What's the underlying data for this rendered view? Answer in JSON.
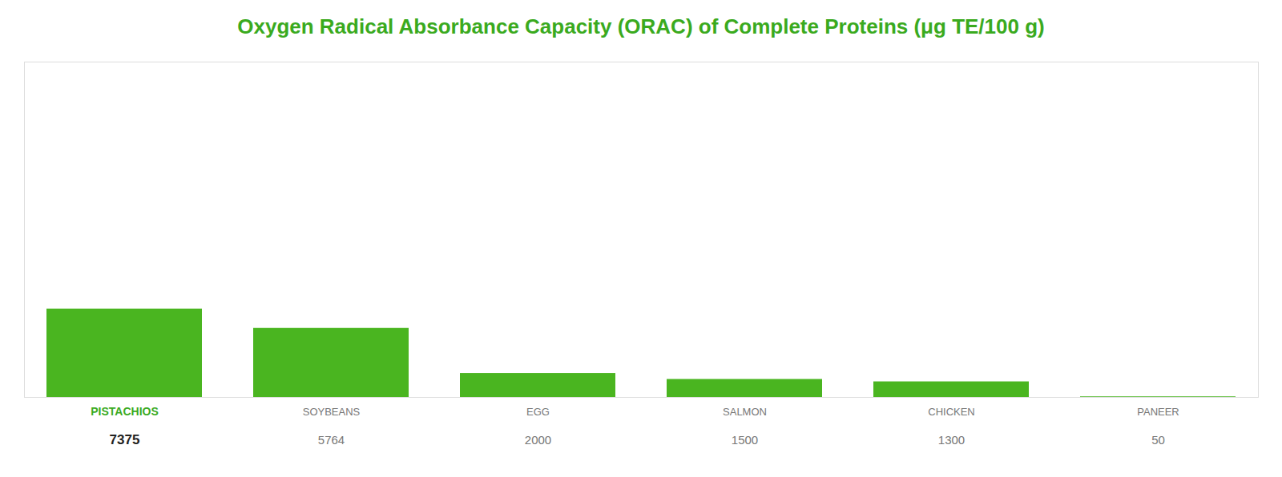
{
  "chart_data": {
    "type": "bar",
    "title": "Oxygen Radical Absorbance Capacity (ORAC) of Complete Proteins (μg TE/100 g)",
    "categories": [
      "PISTACHIOS",
      "SOYBEANS",
      "EGG",
      "SALMON",
      "CHICKEN",
      "PANEER"
    ],
    "values": [
      7375,
      5764,
      2000,
      1500,
      1300,
      50
    ],
    "color": "#4ab520",
    "ylim": [
      0,
      28000
    ],
    "data_labels": true,
    "tick_labels": "x"
  }
}
